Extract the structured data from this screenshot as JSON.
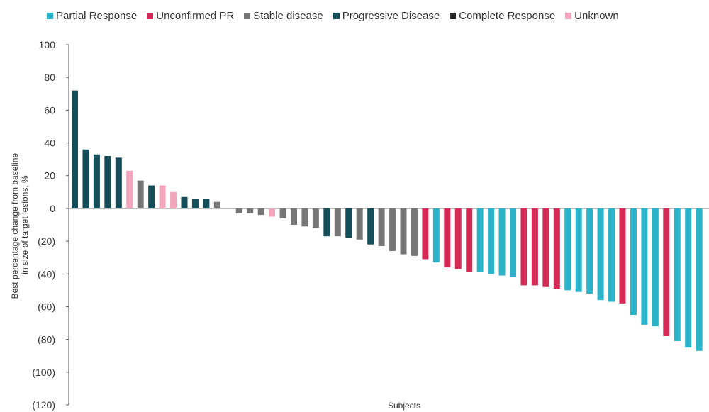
{
  "chart_data": {
    "type": "bar",
    "title": "",
    "xlabel": "Subjects",
    "ylabel_lines": [
      "Best percentage change from baseline",
      "in size of target lesions, %"
    ],
    "ylim": [
      -120,
      100
    ],
    "yticks": [
      100,
      80,
      60,
      40,
      20,
      0,
      -20,
      -40,
      -60,
      -80,
      -100,
      -120
    ],
    "ytick_labels": [
      "100",
      "80",
      "60",
      "40",
      "20",
      "0",
      "(20)",
      "(40)",
      "(60)",
      "(80)",
      "(100)",
      "(120)"
    ],
    "grid": false,
    "legend_position": "top",
    "legend": [
      {
        "name": "Partial Response",
        "color": "#2bb3c9"
      },
      {
        "name": "Unconfirmed PR",
        "color": "#d42a55"
      },
      {
        "name": "Stable disease",
        "color": "#767676"
      },
      {
        "name": "Progressive Disease",
        "color": "#154e59"
      },
      {
        "name": "Complete Response",
        "color": "#2c2c2c"
      },
      {
        "name": "Unknown",
        "color": "#f1a6bb"
      }
    ],
    "category_colors": {
      "PR": "#2bb3c9",
      "UPR": "#d42a55",
      "SD": "#767676",
      "PD": "#154e59",
      "CR": "#2c2c2c",
      "UNK": "#f1a6bb"
    },
    "bars": [
      {
        "value": 72,
        "category": "PD"
      },
      {
        "value": 36,
        "category": "PD"
      },
      {
        "value": 33,
        "category": "PD"
      },
      {
        "value": 32,
        "category": "PD"
      },
      {
        "value": 31,
        "category": "PD"
      },
      {
        "value": 23,
        "category": "UNK"
      },
      {
        "value": 17,
        "category": "SD"
      },
      {
        "value": 14,
        "category": "PD"
      },
      {
        "value": 14,
        "category": "UNK"
      },
      {
        "value": 10,
        "category": "UNK"
      },
      {
        "value": 7,
        "category": "PD"
      },
      {
        "value": 6,
        "category": "PD"
      },
      {
        "value": 6,
        "category": "PD"
      },
      {
        "value": 4,
        "category": "SD"
      },
      {
        "value": 0,
        "category": "SD"
      },
      {
        "value": -3,
        "category": "SD"
      },
      {
        "value": -3,
        "category": "SD"
      },
      {
        "value": -4,
        "category": "SD"
      },
      {
        "value": -5,
        "category": "UNK"
      },
      {
        "value": -6,
        "category": "SD"
      },
      {
        "value": -10,
        "category": "SD"
      },
      {
        "value": -11,
        "category": "SD"
      },
      {
        "value": -12,
        "category": "SD"
      },
      {
        "value": -17,
        "category": "PD"
      },
      {
        "value": -17,
        "category": "SD"
      },
      {
        "value": -18,
        "category": "PD"
      },
      {
        "value": -19,
        "category": "SD"
      },
      {
        "value": -22,
        "category": "PD"
      },
      {
        "value": -23,
        "category": "SD"
      },
      {
        "value": -26,
        "category": "SD"
      },
      {
        "value": -28,
        "category": "SD"
      },
      {
        "value": -29,
        "category": "SD"
      },
      {
        "value": -31,
        "category": "UPR"
      },
      {
        "value": -33,
        "category": "PR"
      },
      {
        "value": -36,
        "category": "UPR"
      },
      {
        "value": -37,
        "category": "UPR"
      },
      {
        "value": -39,
        "category": "UPR"
      },
      {
        "value": -39,
        "category": "PR"
      },
      {
        "value": -40,
        "category": "PR"
      },
      {
        "value": -41,
        "category": "PR"
      },
      {
        "value": -42,
        "category": "PR"
      },
      {
        "value": -47,
        "category": "UPR"
      },
      {
        "value": -47,
        "category": "UPR"
      },
      {
        "value": -48,
        "category": "UPR"
      },
      {
        "value": -49,
        "category": "UPR"
      },
      {
        "value": -50,
        "category": "PR"
      },
      {
        "value": -51,
        "category": "PR"
      },
      {
        "value": -52,
        "category": "PR"
      },
      {
        "value": -56,
        "category": "PR"
      },
      {
        "value": -57,
        "category": "PR"
      },
      {
        "value": -58,
        "category": "UPR"
      },
      {
        "value": -65,
        "category": "PR"
      },
      {
        "value": -71,
        "category": "PR"
      },
      {
        "value": -72,
        "category": "PR"
      },
      {
        "value": -78,
        "category": "UPR"
      },
      {
        "value": -81,
        "category": "PR"
      },
      {
        "value": -85,
        "category": "PR"
      },
      {
        "value": -87,
        "category": "PR"
      }
    ]
  }
}
